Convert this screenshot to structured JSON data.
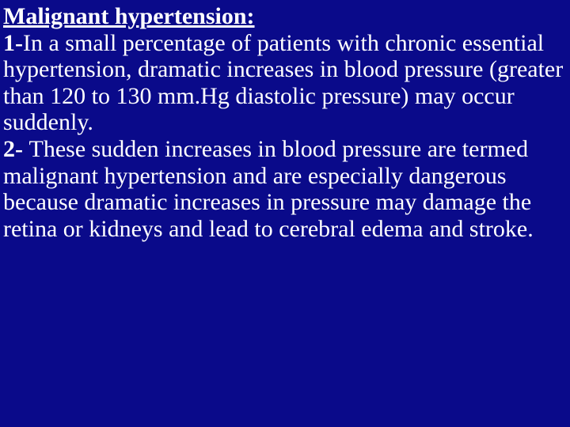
{
  "slide": {
    "background_color": "#0a0a8a",
    "text_color": "#ffffff",
    "font_family": "Times New Roman",
    "heading_fontsize": 30,
    "body_fontsize": 30,
    "heading": "Malignant hypertension:",
    "item1_number": "1-",
    "item1_text": "In a small percentage of patients with chronic essential hypertension, dramatic increases in blood pressure (greater than 120 to 130 mm.Hg diastolic pressure) may occur suddenly.",
    "item2_number": "2- ",
    "item2_text": "These sudden increases in blood pressure are termed malignant hypertension and are especially dangerous because dramatic increases in pressure may damage the retina or kidneys and lead to cerebral edema and stroke."
  }
}
